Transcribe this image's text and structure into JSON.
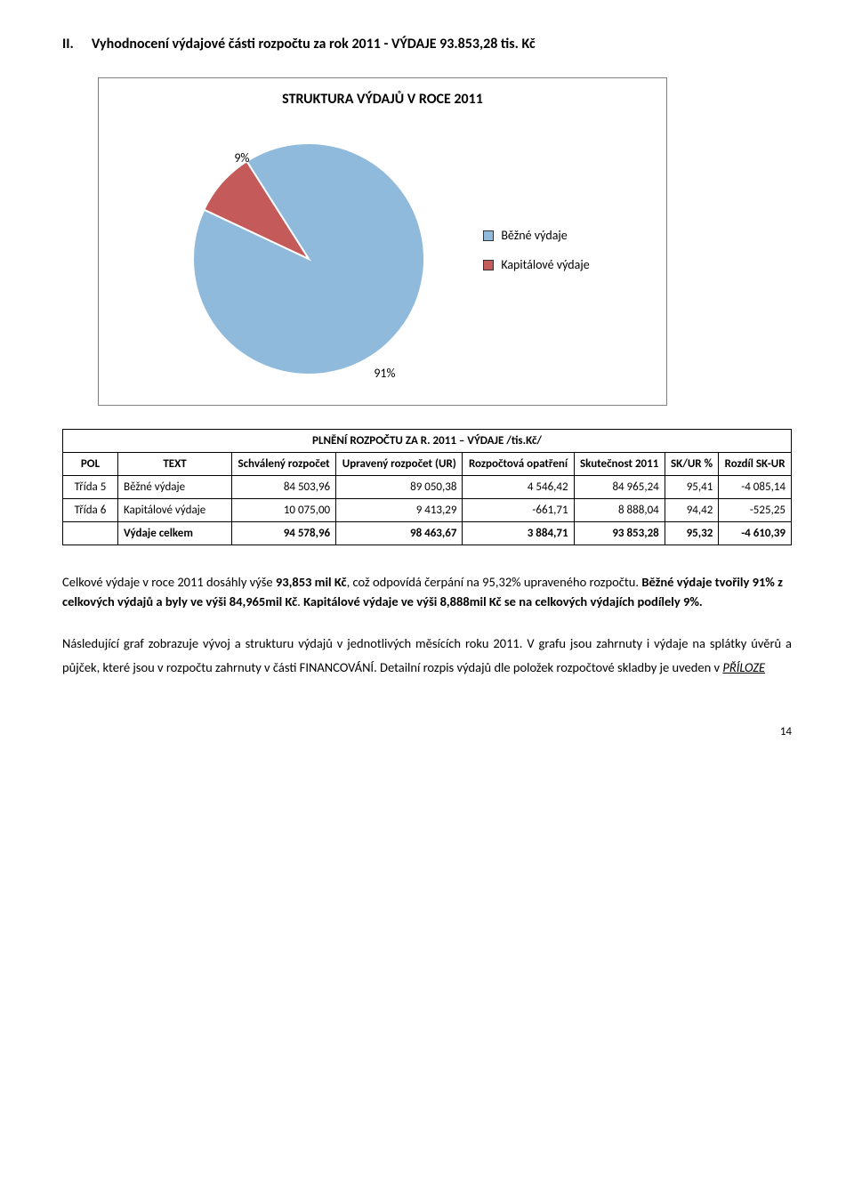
{
  "heading": {
    "roman": "II.",
    "text": "Vyhodnocení výdajové části rozpočtu za rok 2011  -  VÝDAJE 93.853,28 tis. Kč"
  },
  "chart": {
    "title": "STRUKTURA VÝDAJŮ V ROCE 2011",
    "slices": [
      {
        "label": "Běžné výdaje",
        "value": 91,
        "color": "#8fbadc",
        "labelText": "91%"
      },
      {
        "label": "Kapitálové výdaje",
        "value": 9,
        "color": "#c55a5a",
        "labelText": "9%"
      }
    ],
    "label_fontsize": 14,
    "legend_position": "right",
    "background": "#ffffff",
    "stroke": "#ffffff"
  },
  "table": {
    "caption": "PLNĚNÍ ROZPOČTU ZA R. 2011 – VÝDAJE /tis.Kč/",
    "columns": [
      "POL",
      "TEXT",
      "Schválený rozpočet",
      "Upravený rozpočet (UR)",
      "Rozpočtová opatření",
      "Skutečnost 2011",
      "SK/UR %",
      "Rozdíl SK-UR"
    ],
    "rows": [
      {
        "pol": "Třída 5",
        "text": "Běžné výdaje",
        "c": [
          "84 503,96",
          "89 050,38",
          "4 546,42",
          "84 965,24",
          "95,41",
          "-4 085,14"
        ]
      },
      {
        "pol": "Třída 6",
        "text": "Kapitálové výdaje",
        "c": [
          "10 075,00",
          "9 413,29",
          "-661,71",
          "8 888,04",
          "94,42",
          "-525,25"
        ]
      }
    ],
    "total": {
      "pol": "",
      "text": "Výdaje celkem",
      "c": [
        "94 578,96",
        "98 463,67",
        "3 884,71",
        "93 853,28",
        "95,32",
        "-4 610,39"
      ]
    }
  },
  "para1": {
    "s1a": "Celkové výdaje v roce 2011 dosáhly výše ",
    "s1b": "93,853 mil Kč",
    "s1c": ", což odpovídá čerpání na 95,32% upraveného rozpočtu. ",
    "s2a": "Běžné  výdaje tvořily 91% z celkových výdajů a byly ve výši 84,965mil Kč",
    "s2b": ". ",
    "s3a": "Kapitálové výdaje ve výši 8,888mil Kč se na celkových výdajích podílely 9%."
  },
  "para2": {
    "t1": "Následující graf zobrazuje vývoj a strukturu výdajů v jednotlivých měsících roku 2011. V grafu jsou zahrnuty i výdaje na splátky úvěrů a půjček, které jsou v rozpočtu zahrnuty v části FINANCOVÁNÍ. Detailní rozpis výdajů dle položek rozpočtové skladby je uveden v ",
    "link": "PŘÍLOZE"
  },
  "pageNumber": "14"
}
